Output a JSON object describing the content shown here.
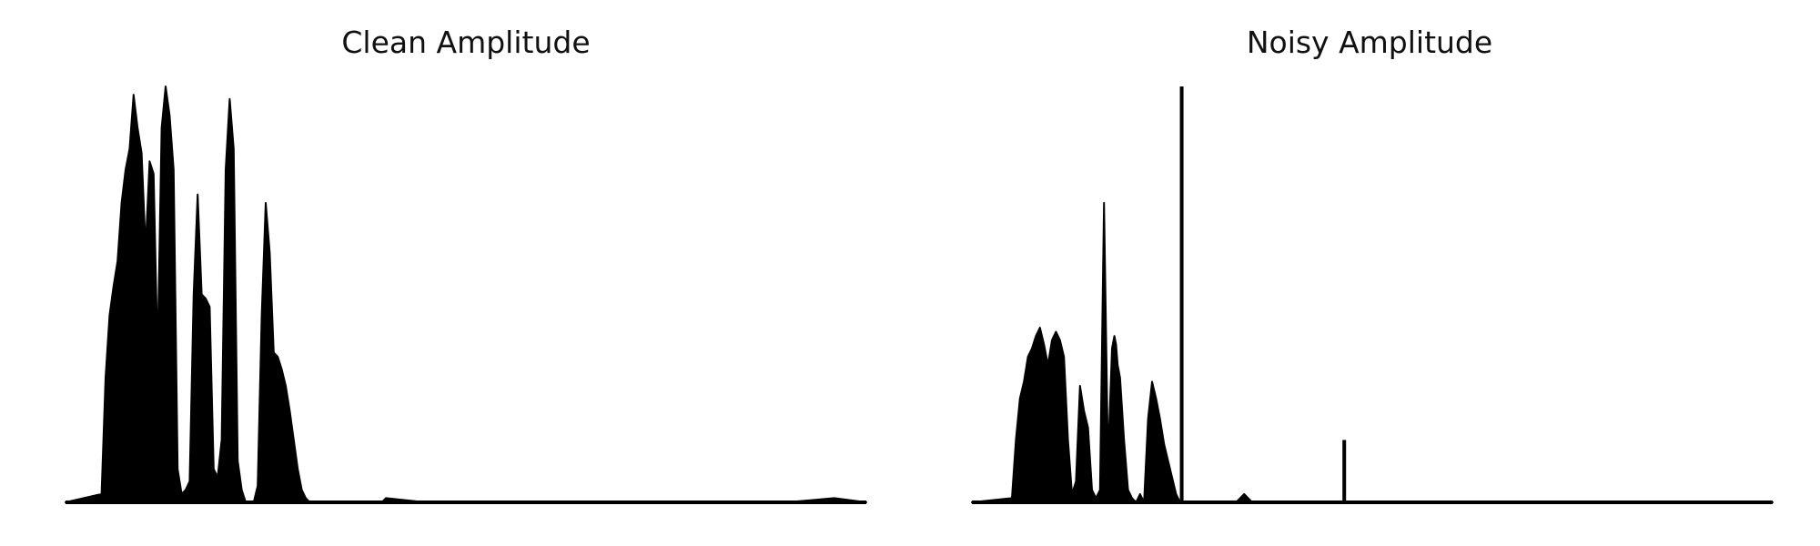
{
  "chart_data": [
    {
      "type": "area",
      "title": "Clean Amplitude",
      "xlabel": "",
      "ylabel": "",
      "axes_visible": false,
      "grid": false,
      "color": "#000000",
      "xlim": [
        0,
        1
      ],
      "ylim": [
        0,
        1
      ],
      "x": [
        0.0,
        0.045,
        0.05,
        0.055,
        0.06,
        0.065,
        0.07,
        0.075,
        0.08,
        0.085,
        0.09,
        0.095,
        0.1,
        0.105,
        0.11,
        0.115,
        0.12,
        0.125,
        0.13,
        0.135,
        0.14,
        0.145,
        0.15,
        0.155,
        0.16,
        0.165,
        0.17,
        0.175,
        0.18,
        0.185,
        0.19,
        0.195,
        0.2,
        0.205,
        0.21,
        0.215,
        0.22,
        0.225,
        0.23,
        0.235,
        0.24,
        0.245,
        0.25,
        0.255,
        0.26,
        0.265,
        0.27,
        0.275,
        0.28,
        0.285,
        0.29,
        0.295,
        0.3,
        0.305,
        0.31,
        0.315,
        0.32,
        0.325,
        0.33,
        0.335,
        0.34,
        0.345,
        0.35,
        0.355,
        0.36,
        0.365,
        0.37,
        0.375,
        0.38,
        0.385,
        0.39,
        0.395,
        0.4,
        0.45,
        0.6,
        0.9,
        0.96,
        1.0
      ],
      "y": [
        0.0,
        0.02,
        0.3,
        0.45,
        0.52,
        0.58,
        0.72,
        0.8,
        0.85,
        0.98,
        0.9,
        0.84,
        0.61,
        0.82,
        0.79,
        0.35,
        0.9,
        1.0,
        0.93,
        0.8,
        0.08,
        0.02,
        0.03,
        0.05,
        0.5,
        0.74,
        0.5,
        0.49,
        0.47,
        0.08,
        0.06,
        0.15,
        0.8,
        0.97,
        0.85,
        0.1,
        0.03,
        0.0,
        0.0,
        0.0,
        0.04,
        0.45,
        0.72,
        0.6,
        0.36,
        0.35,
        0.32,
        0.28,
        0.22,
        0.15,
        0.08,
        0.03,
        0.01,
        0.0,
        0.0,
        0.0,
        0.0,
        0.0,
        0.0,
        0.0,
        0.0,
        0.0,
        0.0,
        0.0,
        0.0,
        0.0,
        0.0,
        0.0,
        0.0,
        0.0,
        0.0,
        0.0,
        0.01,
        0.0,
        0.0,
        0.0,
        0.01,
        0.0
      ]
    },
    {
      "type": "area",
      "title": "Noisy Amplitude",
      "xlabel": "",
      "ylabel": "",
      "axes_visible": false,
      "grid": false,
      "color": "#000000",
      "xlim": [
        0,
        1
      ],
      "ylim": [
        0,
        1
      ],
      "x": [
        0.0,
        0.05,
        0.055,
        0.06,
        0.065,
        0.07,
        0.075,
        0.08,
        0.085,
        0.09,
        0.095,
        0.1,
        0.105,
        0.11,
        0.115,
        0.12,
        0.125,
        0.13,
        0.135,
        0.14,
        0.145,
        0.15,
        0.155,
        0.16,
        0.165,
        0.17,
        0.175,
        0.178,
        0.18,
        0.182,
        0.185,
        0.19,
        0.195,
        0.2,
        0.205,
        0.21,
        0.215,
        0.22,
        0.225,
        0.23,
        0.235,
        0.24,
        0.245,
        0.25,
        0.255,
        0.26,
        0.265,
        0.27,
        0.275,
        0.28,
        0.29,
        0.3,
        0.31,
        0.32,
        0.33,
        0.34,
        0.35,
        0.38,
        0.4,
        0.45,
        0.5,
        0.55,
        0.6,
        0.7,
        0.8,
        0.9,
        1.0
      ],
      "y": [
        0.0,
        0.01,
        0.15,
        0.25,
        0.29,
        0.35,
        0.37,
        0.4,
        0.42,
        0.38,
        0.33,
        0.39,
        0.41,
        0.39,
        0.35,
        0.15,
        0.02,
        0.05,
        0.28,
        0.22,
        0.18,
        0.03,
        0.01,
        0.03,
        0.72,
        0.1,
        0.37,
        0.4,
        0.38,
        0.33,
        0.3,
        0.15,
        0.03,
        0.01,
        0.0,
        0.02,
        0.0,
        0.2,
        0.29,
        0.25,
        0.2,
        0.14,
        0.1,
        0.06,
        0.02,
        0.0,
        0.0,
        0.0,
        0.0,
        0.0,
        0.0,
        0.0,
        0.0,
        0.0,
        0.0,
        0.02,
        0.0,
        0.0,
        0.0,
        0.0,
        0.0,
        0.0,
        0.0,
        0.0,
        0.0,
        0.0,
        0.0
      ],
      "spikes": [
        {
          "x": 0.262,
          "y": 1.0
        },
        {
          "x": 0.465,
          "y": 0.15
        }
      ]
    }
  ]
}
